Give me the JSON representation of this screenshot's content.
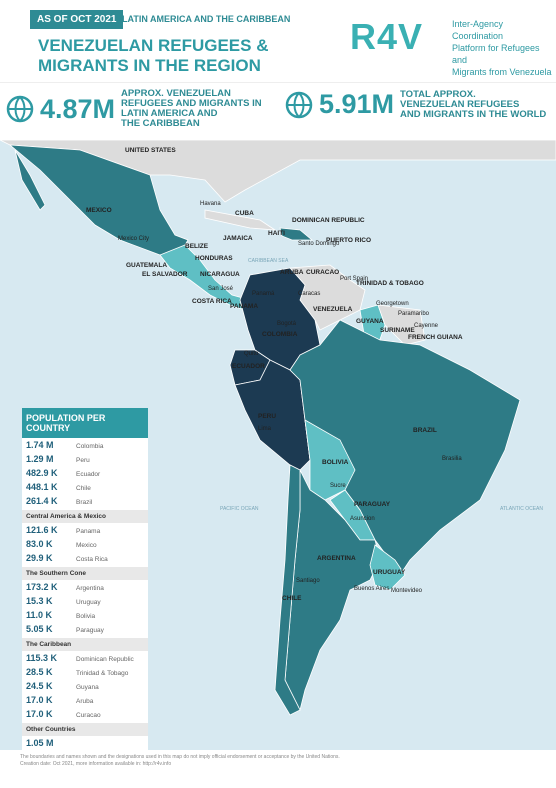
{
  "header": {
    "badge": "AS OF OCT 2021",
    "region": "LATIN AMERICA AND THE CARIBBEAN",
    "title_lines": [
      "VENEZUELAN REFUGEES &",
      "MIGRANTS IN THE REGION"
    ],
    "logo": "R4V",
    "platform_lines": [
      "Inter-Agency Coordination",
      "Platform for Refugees and",
      "Migrants from Venezuela"
    ]
  },
  "stats": [
    {
      "value": "4.87M",
      "label_lines": [
        "APPROX. VENEZUELAN",
        "REFUGEES AND MIGRANTS IN",
        "LATIN AMERICA AND",
        "THE CARIBBEAN"
      ]
    },
    {
      "value": "5.91M",
      "label_lines": [
        "TOTAL APPROX.",
        "VENEZUELAN REFUGEES",
        "AND MIGRANTS IN THE WORLD"
      ]
    }
  ],
  "map": {
    "labels": [
      "UNITED STATES",
      "MEXICO",
      "Mexico City",
      "Havana",
      "CUBA",
      "DOMINICAN REPUBLIC",
      "HAITI",
      "Santo Domingo",
      "PUERTO RICO",
      "BELIZE",
      "JAMAICA",
      "HONDURAS",
      "GUATEMALA",
      "EL SALVADOR",
      "NICARAGUA",
      "CARIBBEAN SEA",
      "San José",
      "Panamá",
      "COSTA RICA",
      "PANAMA",
      "ARUBA",
      "CURACAO",
      "Port Spain",
      "TRINIDAD & TOBAGO",
      "Caracas",
      "VENEZUELA",
      "Georgetown",
      "Paramaribo",
      "Cayenne",
      "GUYANA",
      "SURINAME",
      "FRENCH GUIANA",
      "Bogotá",
      "COLOMBIA",
      "Quito",
      "ECUADOR",
      "PERU",
      "Lima",
      "BRAZIL",
      "Brasilia",
      "BOLIVIA",
      "Sucre",
      "PARAGUAY",
      "Asuncion",
      "PACIFIC OCEAN",
      "ATLANTIC OCEAN",
      "ARGENTINA",
      "Santiago",
      "CHILE",
      "Buenos Aires",
      "URUGUAY",
      "Montevideo"
    ]
  },
  "table": {
    "title": "POPULATION PER COUNTRY",
    "groups": [
      {
        "name": null,
        "rows": [
          [
            "1.74 M",
            "Colombia"
          ],
          [
            "1.29 M",
            "Peru"
          ],
          [
            "482.9 K",
            "Ecuador"
          ],
          [
            "448.1 K",
            "Chile"
          ],
          [
            "261.4 K",
            "Brazil"
          ]
        ]
      },
      {
        "name": "Central America & Mexico",
        "rows": [
          [
            "121.6 K",
            "Panama"
          ],
          [
            "83.0 K",
            "Mexico"
          ],
          [
            "29.9 K",
            "Costa Rica"
          ]
        ]
      },
      {
        "name": "The Southern Cone",
        "rows": [
          [
            "173.2 K",
            "Argentina"
          ],
          [
            "15.3 K",
            "Uruguay"
          ],
          [
            "11.0 K",
            "Bolivia"
          ],
          [
            "5.05 K",
            "Paraguay"
          ]
        ]
      },
      {
        "name": "The Caribbean",
        "rows": [
          [
            "115.3 K",
            "Dominican Republic"
          ],
          [
            "28.5 K",
            "Trinidad & Tobago"
          ],
          [
            "24.5 K",
            "Guyana"
          ],
          [
            "17.0 K",
            "Aruba"
          ],
          [
            "17.0 K",
            "Curacao"
          ]
        ]
      },
      {
        "name": "Other Countries",
        "rows": [
          [
            "1.05 M",
            null
          ]
        ]
      }
    ]
  },
  "footer": [
    "The boundaries and names shown and the designations used in this map do not imply official endorsement or acceptance by the United Nations.",
    "Creation date:  Oct 2021,  more information available in: http://r4v.info"
  ]
}
